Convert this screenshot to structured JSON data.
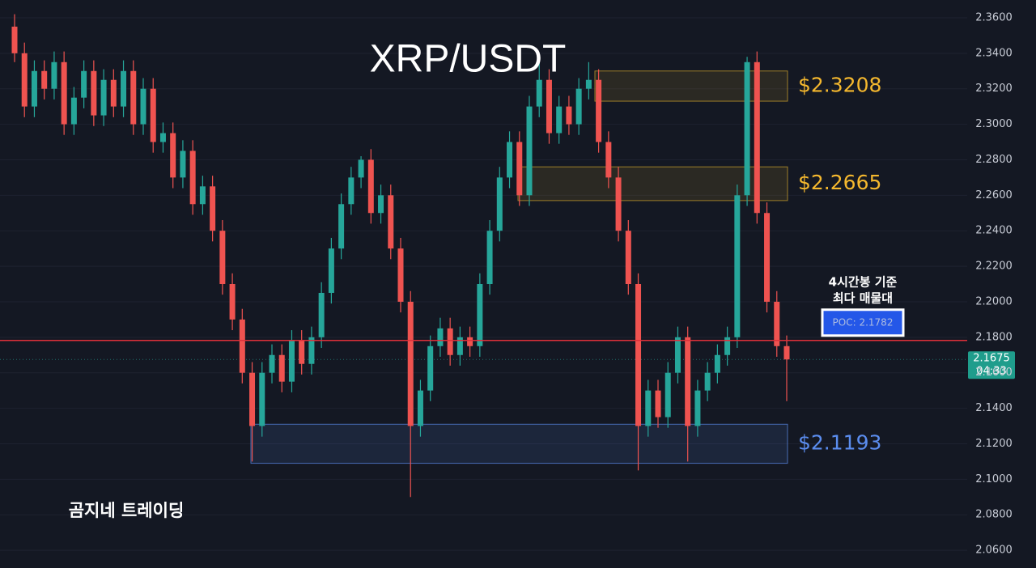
{
  "chart_data": {
    "type": "candlestick",
    "title": "XRP/USDT",
    "watermark": "곰지네 트레이딩",
    "ylim": [
      2.05,
      2.37
    ],
    "yticks": [
      {
        "value": 2.06,
        "label": "2.0600"
      },
      {
        "value": 2.08,
        "label": "2.0800"
      },
      {
        "value": 2.1,
        "label": "2.1000"
      },
      {
        "value": 2.12,
        "label": "2.1200"
      },
      {
        "value": 2.14,
        "label": "2.1400"
      },
      {
        "value": 2.16,
        "label": "2.1600"
      },
      {
        "value": 2.18,
        "label": "2.1800"
      },
      {
        "value": 2.2,
        "label": "2.2000"
      },
      {
        "value": 2.22,
        "label": "2.2200"
      },
      {
        "value": 2.24,
        "label": "2.2400"
      },
      {
        "value": 2.26,
        "label": "2.2600"
      },
      {
        "value": 2.28,
        "label": "2.2800"
      },
      {
        "value": 2.3,
        "label": "2.3000"
      },
      {
        "value": 2.32,
        "label": "2.3200"
      },
      {
        "value": 2.34,
        "label": "2.3400"
      },
      {
        "value": 2.36,
        "label": "2.3600"
      }
    ],
    "grid": true,
    "up_color": "#26a69a",
    "down_color": "#ef5350",
    "open": [
      2.355,
      2.34,
      2.31,
      2.33,
      2.32,
      2.335,
      2.3,
      2.315,
      2.33,
      2.305,
      2.325,
      2.31,
      2.33,
      2.3,
      2.32,
      2.29,
      2.295,
      2.27,
      2.285,
      2.255,
      2.265,
      2.24,
      2.21,
      2.19,
      2.16,
      2.13,
      2.16,
      2.17,
      2.155,
      2.178,
      2.165,
      2.18,
      2.205,
      2.23,
      2.255,
      2.27,
      2.28,
      2.25,
      2.26,
      2.23,
      2.2,
      2.13,
      2.15,
      2.175,
      2.185,
      2.17,
      2.18,
      2.175,
      2.21,
      2.24,
      2.27,
      2.29,
      2.26,
      2.31,
      2.325,
      2.295,
      2.31,
      2.3,
      2.32,
      2.325,
      2.29,
      2.27,
      2.24,
      2.21,
      2.13,
      2.15,
      2.135,
      2.16,
      2.18,
      2.13,
      2.15,
      2.16,
      2.17,
      2.18,
      2.26,
      2.335,
      2.25,
      2.2,
      2.175
    ],
    "high": [
      2.362,
      2.346,
      2.336,
      2.336,
      2.341,
      2.341,
      2.321,
      2.336,
      2.336,
      2.331,
      2.331,
      2.336,
      2.336,
      2.326,
      2.326,
      2.301,
      2.301,
      2.291,
      2.291,
      2.271,
      2.271,
      2.246,
      2.216,
      2.196,
      2.166,
      2.166,
      2.176,
      2.176,
      2.184,
      2.184,
      2.186,
      2.211,
      2.236,
      2.261,
      2.276,
      2.282,
      2.286,
      2.266,
      2.266,
      2.236,
      2.206,
      2.156,
      2.181,
      2.191,
      2.191,
      2.186,
      2.186,
      2.216,
      2.246,
      2.276,
      2.296,
      2.296,
      2.316,
      2.335,
      2.331,
      2.316,
      2.316,
      2.326,
      2.335,
      2.331,
      2.296,
      2.276,
      2.246,
      2.216,
      2.156,
      2.156,
      2.166,
      2.186,
      2.186,
      2.156,
      2.166,
      2.176,
      2.186,
      2.266,
      2.338,
      2.341,
      2.256,
      2.206,
      2.181
    ],
    "low": [
      2.335,
      2.304,
      2.304,
      2.314,
      2.314,
      2.294,
      2.294,
      2.309,
      2.299,
      2.299,
      2.304,
      2.304,
      2.294,
      2.294,
      2.284,
      2.284,
      2.264,
      2.264,
      2.249,
      2.249,
      2.234,
      2.204,
      2.184,
      2.154,
      2.11,
      2.124,
      2.154,
      2.149,
      2.149,
      2.159,
      2.159,
      2.174,
      2.199,
      2.224,
      2.249,
      2.264,
      2.244,
      2.244,
      2.224,
      2.194,
      2.09,
      2.124,
      2.144,
      2.169,
      2.164,
      2.164,
      2.169,
      2.169,
      2.204,
      2.234,
      2.264,
      2.254,
      2.254,
      2.304,
      2.289,
      2.289,
      2.294,
      2.294,
      2.314,
      2.284,
      2.264,
      2.234,
      2.204,
      2.105,
      2.124,
      2.129,
      2.129,
      2.154,
      2.11,
      2.124,
      2.144,
      2.154,
      2.164,
      2.174,
      2.254,
      2.244,
      2.194,
      2.169,
      2.144
    ],
    "close": [
      2.34,
      2.31,
      2.33,
      2.32,
      2.335,
      2.3,
      2.315,
      2.33,
      2.305,
      2.325,
      2.31,
      2.33,
      2.3,
      2.32,
      2.29,
      2.295,
      2.27,
      2.285,
      2.255,
      2.265,
      2.24,
      2.21,
      2.19,
      2.16,
      2.13,
      2.16,
      2.17,
      2.155,
      2.178,
      2.165,
      2.18,
      2.205,
      2.23,
      2.255,
      2.27,
      2.28,
      2.25,
      2.26,
      2.23,
      2.2,
      2.13,
      2.15,
      2.175,
      2.185,
      2.17,
      2.18,
      2.175,
      2.21,
      2.24,
      2.27,
      2.29,
      2.26,
      2.31,
      2.325,
      2.295,
      2.31,
      2.3,
      2.32,
      2.325,
      2.29,
      2.27,
      2.24,
      2.21,
      2.13,
      2.15,
      2.135,
      2.16,
      2.18,
      2.13,
      2.15,
      2.16,
      2.17,
      2.18,
      2.26,
      2.335,
      2.25,
      2.2,
      2.175,
      2.1675
    ],
    "zones": [
      {
        "label": "$2.3208",
        "low": 2.313,
        "high": 2.33,
        "color": "#d4a72c",
        "text_color": "#f5b82e"
      },
      {
        "label": "$2.2665",
        "low": 2.257,
        "high": 2.276,
        "color": "#d4a72c",
        "text_color": "#f5b82e"
      },
      {
        "label": "$2.1193",
        "low": 2.109,
        "high": 2.131,
        "color": "#5b8def",
        "text_color": "#5b8def"
      }
    ],
    "poc": {
      "value": 2.1782,
      "label": "POC: 2.1782",
      "note": [
        "4시간봉 기준",
        "최다 매물대"
      ]
    },
    "last_price": 2.1675,
    "countdown": "04:33"
  }
}
